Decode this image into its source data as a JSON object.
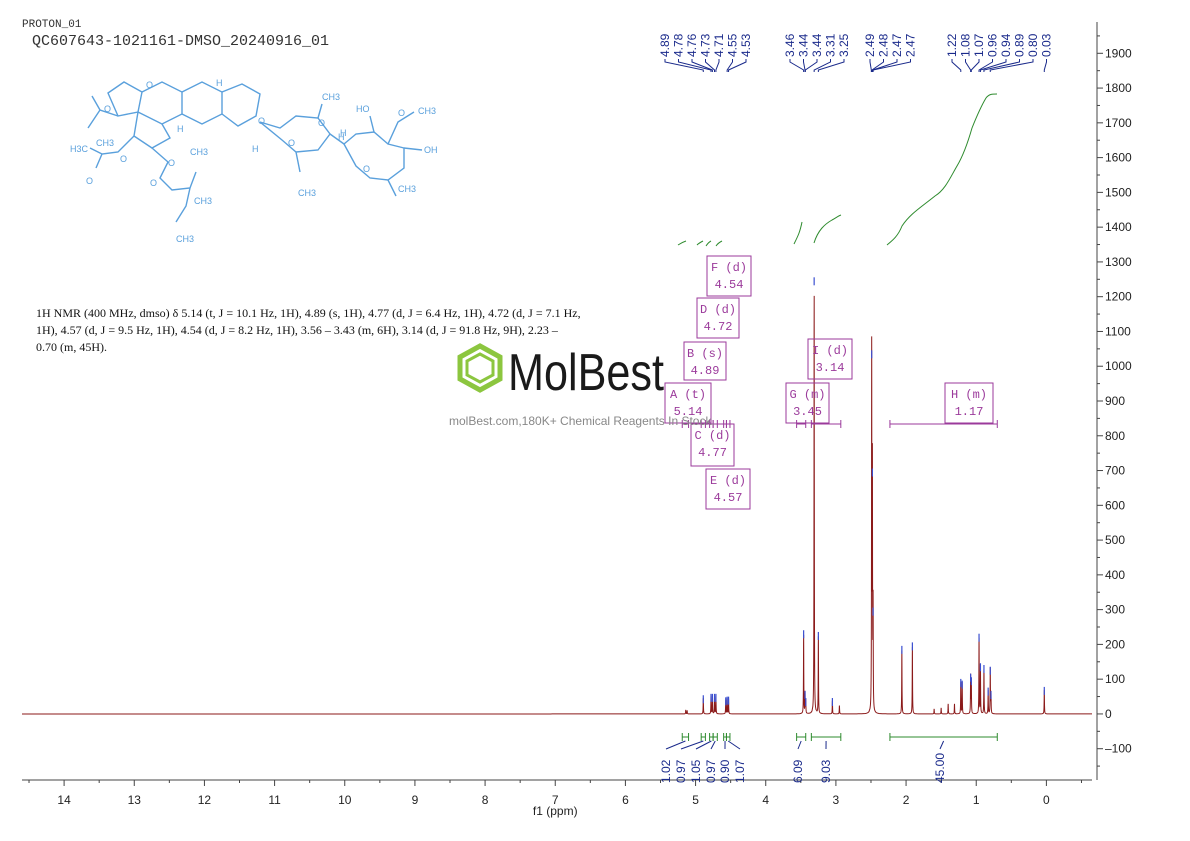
{
  "header": {
    "title_line1": "PROTON_01",
    "title_line2": "QC607643-1021161-DMSO_20240916_01"
  },
  "description": {
    "text": "1H NMR (400 MHz, dmso) δ 5.14 (t, J = 10.1 Hz, 1H), 4.89 (s, 1H), 4.77 (d, J = 6.4 Hz, 1H), 4.72 (d, J = 7.1 Hz, 1H), 4.57 (d, J = 9.5 Hz, 1H), 4.54 (d, J = 8.2 Hz, 1H), 3.56 – 3.43 (m, 6H), 3.14 (d, J = 91.8 Hz, 9H), 2.23 – 0.70 (m, 45H)."
  },
  "watermark": {
    "brand": "MolBest",
    "tagline": "molBest.com,180K+ Chemical Reagents In Stock."
  },
  "structure": {
    "atom_labels": [
      "O",
      "H",
      "O",
      "H",
      "H",
      "O",
      "CH3",
      "O",
      "HO",
      "O",
      "CH3",
      "H",
      "H",
      "O",
      "OH",
      "H3C",
      "O",
      "O",
      "CH3",
      "O",
      "O",
      "CH3",
      "CH3",
      "O",
      "CH3",
      "CH3",
      "CH3"
    ]
  },
  "chart_data": {
    "type": "line",
    "xlabel": "f1 (ppm)",
    "xlim": [
      14.6,
      -0.65
    ],
    "x_ticks": [
      14,
      13,
      12,
      11,
      10,
      9,
      8,
      7,
      6,
      5,
      4,
      3,
      2,
      1,
      0
    ],
    "ylim": [
      -190,
      1990
    ],
    "y_ticks": [
      -100,
      0,
      100,
      200,
      300,
      400,
      500,
      600,
      700,
      800,
      900,
      1000,
      1100,
      1200,
      1300,
      1400,
      1500,
      1600,
      1700,
      1800,
      1900
    ],
    "line_color": "#8b1a1a",
    "integral_color": "#2e8b2e",
    "label_color": "#1a2a8b",
    "multiplet_color": "#9b3a9b",
    "peaks": [
      {
        "x": 5.14,
        "y": 12
      },
      {
        "x": 5.12,
        "y": 10
      },
      {
        "x": 4.89,
        "y": 48
      },
      {
        "x": 4.78,
        "y": 52
      },
      {
        "x": 4.76,
        "y": 52
      },
      {
        "x": 4.73,
        "y": 52
      },
      {
        "x": 4.71,
        "y": 52
      },
      {
        "x": 4.57,
        "y": 42
      },
      {
        "x": 4.55,
        "y": 44
      },
      {
        "x": 4.53,
        "y": 44
      },
      {
        "x": 3.46,
        "y": 235
      },
      {
        "x": 3.44,
        "y": 60
      },
      {
        "x": 3.43,
        "y": 40
      },
      {
        "x": 3.31,
        "y": 1250
      },
      {
        "x": 3.25,
        "y": 230
      },
      {
        "x": 3.05,
        "y": 40
      },
      {
        "x": 2.95,
        "y": 25
      },
      {
        "x": 2.49,
        "y": 1040
      },
      {
        "x": 2.48,
        "y": 700
      },
      {
        "x": 2.47,
        "y": 300
      },
      {
        "x": 2.06,
        "y": 190
      },
      {
        "x": 1.91,
        "y": 200
      },
      {
        "x": 1.6,
        "y": 15
      },
      {
        "x": 1.5,
        "y": 18
      },
      {
        "x": 1.4,
        "y": 30
      },
      {
        "x": 1.31,
        "y": 30
      },
      {
        "x": 1.22,
        "y": 95
      },
      {
        "x": 1.2,
        "y": 90
      },
      {
        "x": 1.08,
        "y": 110
      },
      {
        "x": 1.07,
        "y": 100
      },
      {
        "x": 0.96,
        "y": 225
      },
      {
        "x": 0.94,
        "y": 140
      },
      {
        "x": 0.89,
        "y": 135
      },
      {
        "x": 0.83,
        "y": 70
      },
      {
        "x": 0.8,
        "y": 130
      },
      {
        "x": 0.79,
        "y": 60
      },
      {
        "x": 0.03,
        "y": 72
      }
    ],
    "peak_labels": [
      {
        "text": "4.89",
        "x": 4.89
      },
      {
        "text": "4.78",
        "x": 4.78
      },
      {
        "text": "4.76",
        "x": 4.76
      },
      {
        "text": "4.73",
        "x": 4.73
      },
      {
        "text": "4.71",
        "x": 4.71
      },
      {
        "text": "4.55",
        "x": 4.55
      },
      {
        "text": "4.53",
        "x": 4.53
      },
      {
        "text": "3.46",
        "x": 3.46
      },
      {
        "text": "3.44",
        "x": 3.44
      },
      {
        "text": "3.44",
        "x": 3.435
      },
      {
        "text": "3.31",
        "x": 3.31
      },
      {
        "text": "3.25",
        "x": 3.25
      },
      {
        "text": "2.49",
        "x": 2.495
      },
      {
        "text": "2.48",
        "x": 2.485
      },
      {
        "text": "2.47",
        "x": 2.475
      },
      {
        "text": "2.47",
        "x": 2.47
      },
      {
        "text": "1.22",
        "x": 1.22
      },
      {
        "text": "1.08",
        "x": 1.08
      },
      {
        "text": "1.07",
        "x": 1.07
      },
      {
        "text": "0.96",
        "x": 0.96
      },
      {
        "text": "0.94",
        "x": 0.94
      },
      {
        "text": "0.89",
        "x": 0.89
      },
      {
        "text": "0.80",
        "x": 0.8
      },
      {
        "text": "0.03",
        "x": 0.03
      }
    ],
    "integrals": [
      {
        "from": 5.19,
        "to": 5.1,
        "value": "1.02"
      },
      {
        "from": 4.92,
        "to": 4.86,
        "value": "0.97"
      },
      {
        "from": 4.8,
        "to": 4.75,
        "value": "1.05"
      },
      {
        "from": 4.75,
        "to": 4.69,
        "value": "0.97"
      },
      {
        "from": 4.6,
        "to": 4.56,
        "value": "0.90"
      },
      {
        "from": 4.56,
        "to": 4.51,
        "value": "1.07"
      },
      {
        "from": 3.56,
        "to": 3.43,
        "value": "6.09"
      },
      {
        "from": 3.35,
        "to": 2.93,
        "value": "9.03"
      },
      {
        "from": 2.23,
        "to": 0.7,
        "value": "45.00"
      }
    ],
    "multiplets": [
      {
        "letter": "A",
        "type": "(t)",
        "shift": "5.14"
      },
      {
        "letter": "B",
        "type": "(s)",
        "shift": "4.89"
      },
      {
        "letter": "C",
        "type": "(d)",
        "shift": "4.77"
      },
      {
        "letter": "D",
        "type": "(d)",
        "shift": "4.72"
      },
      {
        "letter": "E",
        "type": "(d)",
        "shift": "4.57"
      },
      {
        "letter": "F",
        "type": "(d)",
        "shift": "4.54"
      },
      {
        "letter": "G",
        "type": "(m)",
        "shift": "3.45"
      },
      {
        "letter": "H",
        "type": "(m)",
        "shift": "1.17"
      },
      {
        "letter": "I",
        "type": "(d)",
        "shift": "3.14"
      }
    ]
  }
}
